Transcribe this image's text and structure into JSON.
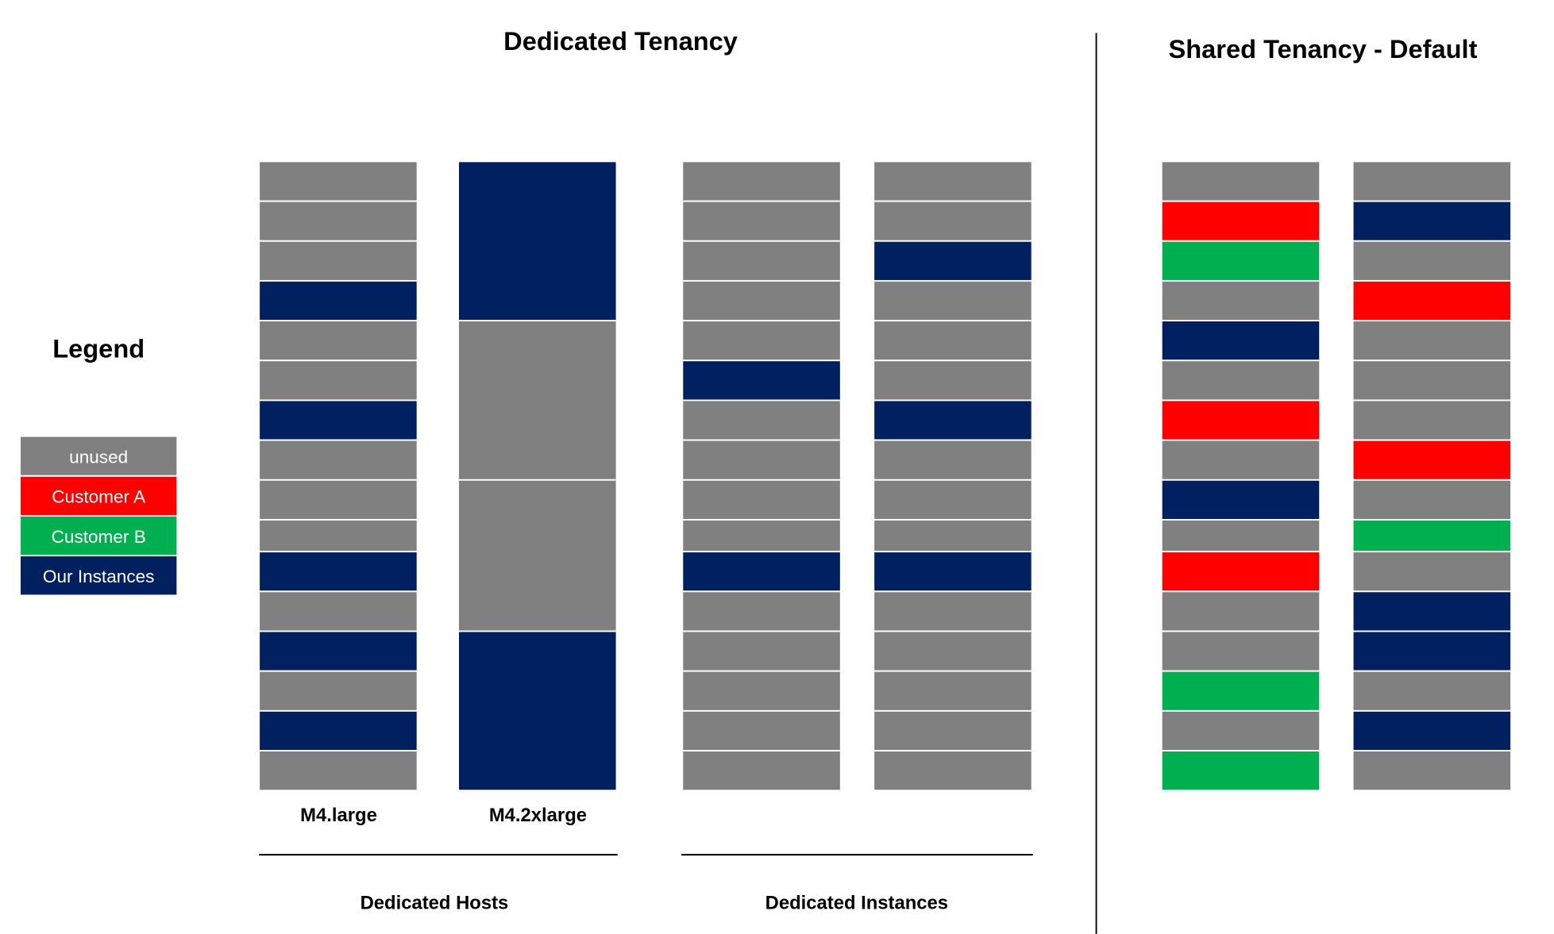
{
  "titles": {
    "dedicated": "Dedicated Tenancy",
    "shared": "Shared Tenancy - Default",
    "legend": "Legend"
  },
  "colors": {
    "unused": "#808080",
    "customer_a": "#FF0000",
    "customer_b": "#00B050",
    "ours": "#002060"
  },
  "legend": [
    {
      "key": "unused",
      "label": "unused"
    },
    {
      "key": "customer_a",
      "label": "Customer A"
    },
    {
      "key": "customer_b",
      "label": "Customer B"
    },
    {
      "key": "ours",
      "label": "Our Instances"
    }
  ],
  "columns": {
    "m4_large": {
      "label": "M4.large",
      "cells": [
        {
          "type": "unused",
          "slots": 1
        },
        {
          "type": "unused",
          "slots": 1
        },
        {
          "type": "unused",
          "slots": 1
        },
        {
          "type": "ours",
          "slots": 1
        },
        {
          "type": "unused",
          "slots": 1
        },
        {
          "type": "unused",
          "slots": 1
        },
        {
          "type": "ours",
          "slots": 1
        },
        {
          "type": "unused",
          "slots": 1
        },
        {
          "type": "unused",
          "slots": 1
        },
        {
          "type": "unused",
          "slots": 1
        },
        {
          "type": "ours",
          "slots": 1
        },
        {
          "type": "unused",
          "slots": 1
        },
        {
          "type": "ours",
          "slots": 1
        },
        {
          "type": "unused",
          "slots": 1
        },
        {
          "type": "ours",
          "slots": 1
        },
        {
          "type": "unused",
          "slots": 1
        }
      ]
    },
    "m4_2xlarge": {
      "label": "M4.2xlarge",
      "cells": [
        {
          "type": "ours",
          "slots": 4
        },
        {
          "type": "unused",
          "slots": 4
        },
        {
          "type": "unused",
          "slots": 4
        },
        {
          "type": "ours",
          "slots": 4
        }
      ]
    },
    "dedicated_instance_1": {
      "cells": [
        {
          "type": "unused",
          "slots": 1
        },
        {
          "type": "unused",
          "slots": 1
        },
        {
          "type": "unused",
          "slots": 1
        },
        {
          "type": "unused",
          "slots": 1
        },
        {
          "type": "unused",
          "slots": 1
        },
        {
          "type": "ours",
          "slots": 1
        },
        {
          "type": "unused",
          "slots": 1
        },
        {
          "type": "unused",
          "slots": 1
        },
        {
          "type": "unused",
          "slots": 1
        },
        {
          "type": "unused",
          "slots": 1
        },
        {
          "type": "ours",
          "slots": 1
        },
        {
          "type": "unused",
          "slots": 1
        },
        {
          "type": "unused",
          "slots": 1
        },
        {
          "type": "unused",
          "slots": 1
        },
        {
          "type": "unused",
          "slots": 1
        },
        {
          "type": "unused",
          "slots": 1
        }
      ]
    },
    "dedicated_instance_2": {
      "cells": [
        {
          "type": "unused",
          "slots": 1
        },
        {
          "type": "unused",
          "slots": 1
        },
        {
          "type": "ours",
          "slots": 1
        },
        {
          "type": "unused",
          "slots": 1
        },
        {
          "type": "unused",
          "slots": 1
        },
        {
          "type": "unused",
          "slots": 1
        },
        {
          "type": "ours",
          "slots": 1
        },
        {
          "type": "unused",
          "slots": 1
        },
        {
          "type": "unused",
          "slots": 1
        },
        {
          "type": "unused",
          "slots": 1
        },
        {
          "type": "ours",
          "slots": 1
        },
        {
          "type": "unused",
          "slots": 1
        },
        {
          "type": "unused",
          "slots": 1
        },
        {
          "type": "unused",
          "slots": 1
        },
        {
          "type": "unused",
          "slots": 1
        },
        {
          "type": "unused",
          "slots": 1
        }
      ]
    },
    "shared_1": {
      "cells": [
        {
          "type": "unused",
          "slots": 1
        },
        {
          "type": "customer_a",
          "slots": 1
        },
        {
          "type": "customer_b",
          "slots": 1
        },
        {
          "type": "unused",
          "slots": 1
        },
        {
          "type": "ours",
          "slots": 1
        },
        {
          "type": "unused",
          "slots": 1
        },
        {
          "type": "customer_a",
          "slots": 1
        },
        {
          "type": "unused",
          "slots": 1
        },
        {
          "type": "ours",
          "slots": 1
        },
        {
          "type": "unused",
          "slots": 1
        },
        {
          "type": "customer_a",
          "slots": 1
        },
        {
          "type": "unused",
          "slots": 1
        },
        {
          "type": "unused",
          "slots": 1
        },
        {
          "type": "customer_b",
          "slots": 1
        },
        {
          "type": "unused",
          "slots": 1
        },
        {
          "type": "customer_b",
          "slots": 1
        }
      ]
    },
    "shared_2": {
      "cells": [
        {
          "type": "unused",
          "slots": 1
        },
        {
          "type": "ours",
          "slots": 1
        },
        {
          "type": "unused",
          "slots": 1
        },
        {
          "type": "customer_a",
          "slots": 1
        },
        {
          "type": "unused",
          "slots": 1
        },
        {
          "type": "unused",
          "slots": 1
        },
        {
          "type": "unused",
          "slots": 1
        },
        {
          "type": "customer_a",
          "slots": 1
        },
        {
          "type": "unused",
          "slots": 1
        },
        {
          "type": "customer_b",
          "slots": 1
        },
        {
          "type": "unused",
          "slots": 1
        },
        {
          "type": "ours",
          "slots": 1
        },
        {
          "type": "ours",
          "slots": 1
        },
        {
          "type": "unused",
          "slots": 1
        },
        {
          "type": "ours",
          "slots": 1
        },
        {
          "type": "unused",
          "slots": 1
        }
      ]
    }
  },
  "groups": {
    "dedicated_hosts": "Dedicated Hosts",
    "dedicated_instances": "Dedicated Instances"
  }
}
